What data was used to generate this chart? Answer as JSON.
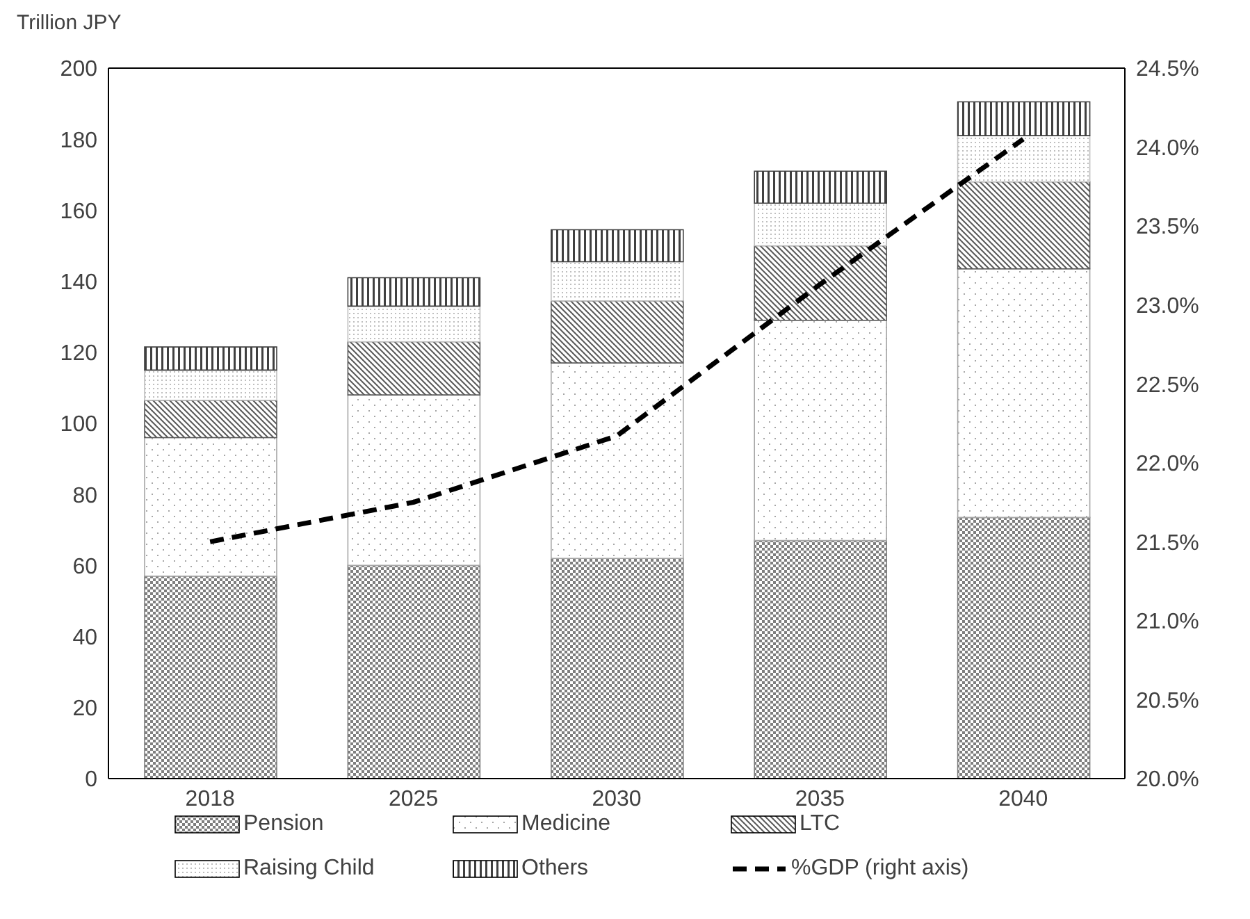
{
  "chart_data": {
    "type": "bar",
    "stacked": true,
    "ylabel": "Trillion JPY",
    "categories": [
      "2018",
      "2025",
      "2030",
      "2035",
      "2040"
    ],
    "ylim": [
      0,
      200
    ],
    "yticks": [
      0,
      20,
      40,
      60,
      80,
      100,
      120,
      140,
      160,
      180,
      200
    ],
    "y2lim": [
      20,
      24.5
    ],
    "y2ticks": [
      {
        "value": 20,
        "label": "20.0%"
      },
      {
        "value": 20.5,
        "label": "20.5%"
      },
      {
        "value": 21,
        "label": "21.0%"
      },
      {
        "value": 21.5,
        "label": "21.5%"
      },
      {
        "value": 22,
        "label": "22.0%"
      },
      {
        "value": 22.5,
        "label": "22.5%"
      },
      {
        "value": 23,
        "label": "23.0%"
      },
      {
        "value": 23.5,
        "label": "23.5%"
      },
      {
        "value": 24,
        "label": "24.0%"
      },
      {
        "value": 24.5,
        "label": "24.5%"
      }
    ],
    "series": [
      {
        "name": "Pension",
        "color": "#7f7f7f",
        "values": [
          57,
          60,
          62,
          67,
          73.5
        ]
      },
      {
        "name": "Medicine",
        "color": "#a6a6a6",
        "values": [
          39,
          48,
          55,
          62,
          70
        ]
      },
      {
        "name": "LTC",
        "color": "#595959",
        "values": [
          10.5,
          15,
          17.5,
          21,
          24.5
        ]
      },
      {
        "name": "Raising Child",
        "color": "#bfbfbf",
        "values": [
          8.5,
          10,
          11,
          12,
          13
        ]
      },
      {
        "name": "Others",
        "color": "#404040",
        "values": [
          6.5,
          8,
          9,
          9,
          9.5
        ]
      },
      {
        "name": "%GDP (right axis)",
        "type": "line",
        "axis": "y2",
        "color": "#000000",
        "line_style": "dashed",
        "marker": "none",
        "values": [
          21.5,
          21.75,
          22.17,
          23.13,
          24.05
        ]
      }
    ],
    "legend": "bottom"
  }
}
